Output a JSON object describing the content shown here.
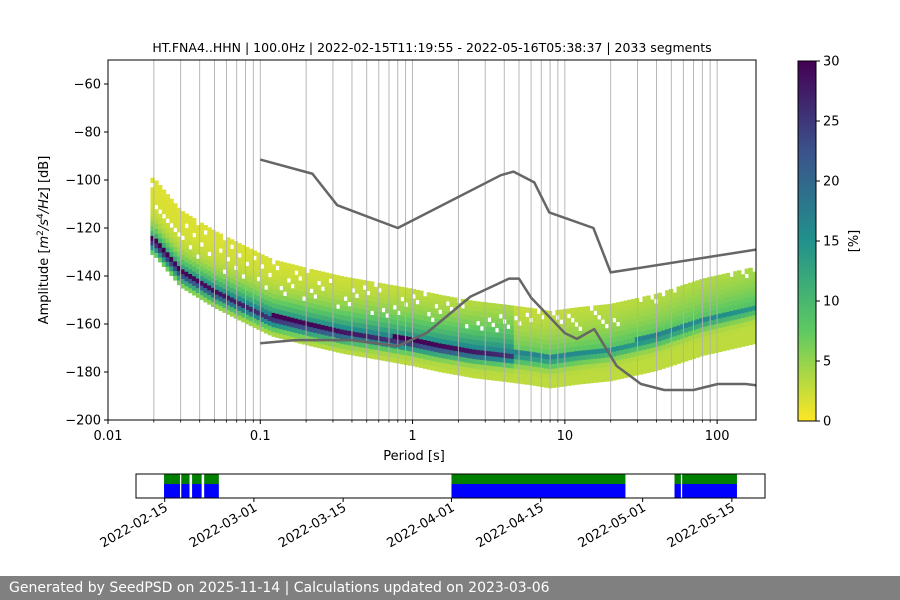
{
  "chart_data": {
    "type": "heatmap",
    "title": "HT.FNA4..HHN | 100.0Hz | 2022-02-15T11:19:55 - 2022-05-16T05:38:37 | 2033 segments",
    "xlabel": "Period [s]",
    "ylabel": "Amplitude [m²/s⁴/Hz] [dB]",
    "ylabel_parts": {
      "pre": "Amplitude [",
      "m": "m",
      "sup1": "2",
      "s": "/s",
      "sup2": "4",
      "hz": "/Hz",
      "post": "] [dB]"
    },
    "x_scale": "log",
    "xlim": [
      0.01,
      180
    ],
    "ylim": [
      -200,
      -50
    ],
    "x_ticks": [
      0.01,
      0.1,
      1,
      10,
      100
    ],
    "x_tick_labels": [
      "0.01",
      "0.1",
      "1",
      "10",
      "100"
    ],
    "y_ticks": [
      -60,
      -80,
      -100,
      -120,
      -140,
      -160,
      -180,
      -200
    ],
    "y_tick_labels": [
      "−60",
      "−80",
      "−100",
      "−120",
      "−140",
      "−160",
      "−180",
      "−200"
    ],
    "grid": true,
    "colorbar": {
      "label": "[%]",
      "range": [
        0,
        30
      ],
      "ticks": [
        0,
        5,
        10,
        15,
        20,
        25,
        30
      ],
      "tick_labels": [
        "0",
        "5",
        "10",
        "15",
        "20",
        "25",
        "30"
      ],
      "colormap": [
        "#440154",
        "#3b528b",
        "#21918c",
        "#5ec962",
        "#fde725"
      ]
    },
    "psd_mode_curve": {
      "name": "mode",
      "x": [
        0.02,
        0.03,
        0.05,
        0.08,
        0.12,
        0.2,
        0.35,
        0.6,
        1.0,
        1.5,
        2.5,
        4,
        6,
        8,
        12,
        20,
        40,
        80,
        180
      ],
      "y": [
        -125,
        -138,
        -146,
        -152,
        -157,
        -160,
        -163,
        -165,
        -167,
        -169,
        -171,
        -172,
        -173,
        -174,
        -172,
        -170,
        -165,
        -158,
        -152
      ]
    },
    "noise_models": {
      "line_color": "#666666",
      "nhnm": {
        "name": "NHNM",
        "x": [
          0.1,
          0.22,
          0.32,
          0.8,
          3.8,
          4.6,
          6.3,
          7.9,
          15.4,
          20,
          180
        ],
        "y": [
          -91.5,
          -97.4,
          -110.5,
          -120,
          -98,
          -96.5,
          -101,
          -113.5,
          -120,
          -138.5,
          -129
        ]
      },
      "nlnm": {
        "name": "NLNM",
        "x": [
          0.1,
          0.17,
          0.4,
          0.8,
          1.24,
          2.4,
          4.3,
          5,
          6,
          10,
          12,
          15.6,
          21.9,
          31.6,
          45,
          70,
          101,
          154,
          180
        ],
        "y": [
          -168,
          -166.7,
          -166.7,
          -169.2,
          -163.7,
          -148.6,
          -141.1,
          -141.1,
          -149,
          -163.8,
          -166.2,
          -162.1,
          -177.5,
          -185,
          -187.5,
          -187.5,
          -185,
          -185,
          -185.5
        ]
      }
    },
    "timeline": {
      "tick_labels": [
        "2022-02-15",
        "2022-03-01",
        "2022-03-15",
        "2022-04-01",
        "2022-04-15",
        "2022-05-01",
        "2022-05-15"
      ],
      "tick_days": [
        0,
        14,
        28,
        45,
        59,
        75,
        89
      ],
      "range_days": [
        -4.5,
        94.2
      ],
      "segments": [
        {
          "start": -0.1,
          "end": 2.4
        },
        {
          "start": 2.6,
          "end": 3.9
        },
        {
          "start": 4.3,
          "end": 5.8
        },
        {
          "start": 6.2,
          "end": 8.5
        },
        {
          "start": 45.0,
          "end": 72.3
        },
        {
          "start": 80.0,
          "end": 81.0
        },
        {
          "start": 81.2,
          "end": 89.8
        }
      ],
      "colors": {
        "data": "#0000ff",
        "coverage": "#008000"
      }
    }
  },
  "footer": {
    "text": "Generated by SeedPSD on 2025-11-14 | Calculations updated on 2023-03-06"
  }
}
